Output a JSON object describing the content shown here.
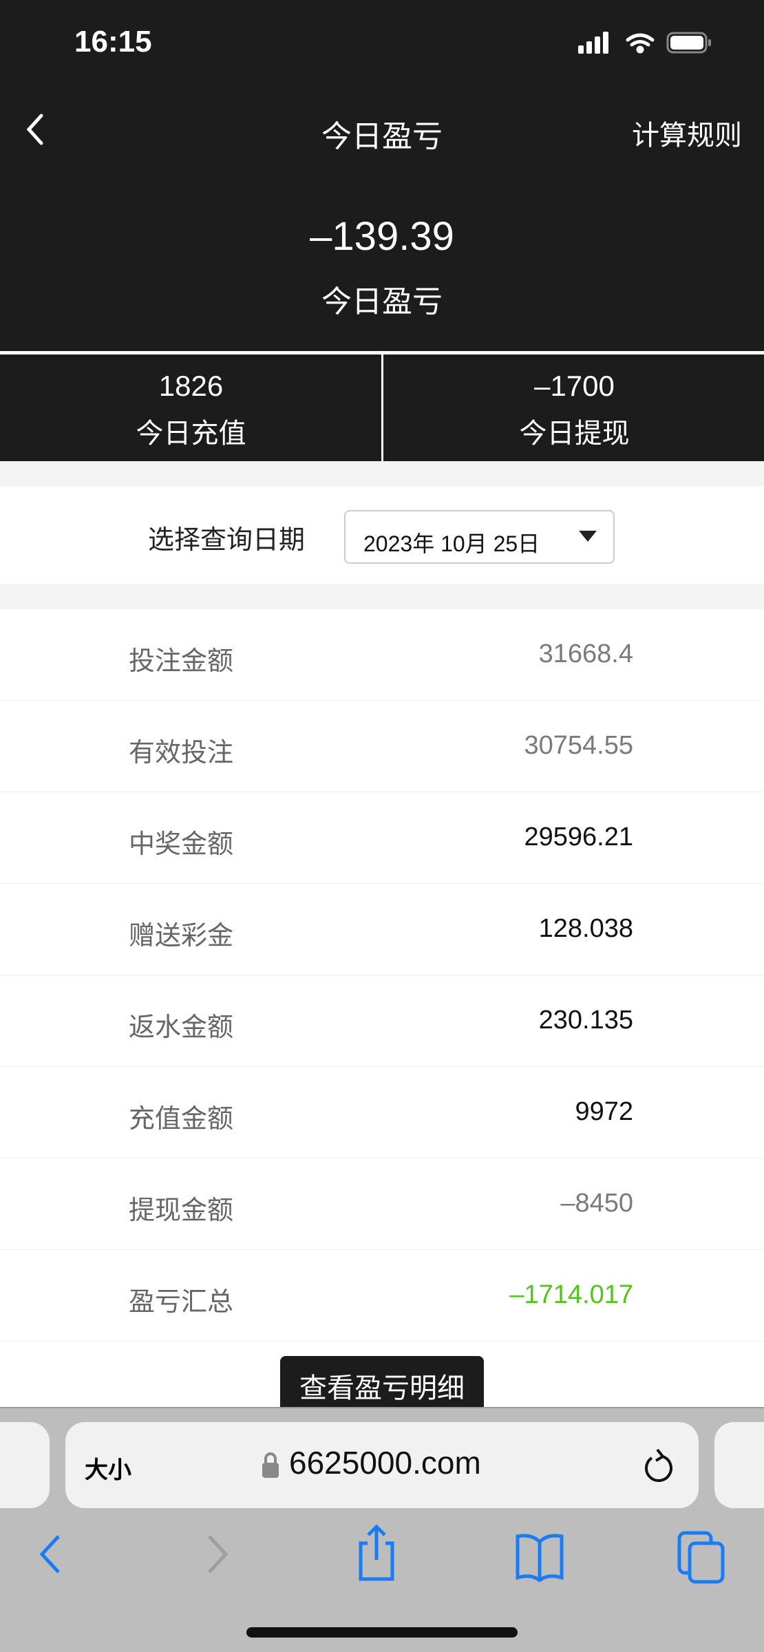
{
  "status_bar": {
    "time": "16:15"
  },
  "nav": {
    "title": "今日盈亏",
    "rules_label": "计算规则"
  },
  "summary": {
    "value": "–139.39",
    "label": "今日盈亏"
  },
  "stats": [
    {
      "value": "1826",
      "label": "今日充值"
    },
    {
      "value": "–1700",
      "label": "今日提现"
    }
  ],
  "date_query": {
    "label": "选择查询日期",
    "selected": "2023年 10月 25日"
  },
  "rows": [
    {
      "label": "投注金额",
      "value": "31668.4",
      "color": "#7a7a7a"
    },
    {
      "label": "有效投注",
      "value": "30754.55",
      "color": "#7a7a7a"
    },
    {
      "label": "中奖金额",
      "value": "29596.21",
      "color": "#111111"
    },
    {
      "label": "赠送彩金",
      "value": "128.038",
      "color": "#111111"
    },
    {
      "label": "返水金额",
      "value": "230.135",
      "color": "#111111"
    },
    {
      "label": "充值金额",
      "value": "9972",
      "color": "#111111"
    },
    {
      "label": "提现金额",
      "value": "–8450",
      "color": "#7a7a7a"
    },
    {
      "label": "盈亏汇总",
      "value": "–1714.017",
      "color": "#52c41a"
    }
  ],
  "detail_button": "查看盈亏明细",
  "browser": {
    "text_size": "大小",
    "url": "6625000.com",
    "accent": "#1a7cf5"
  }
}
